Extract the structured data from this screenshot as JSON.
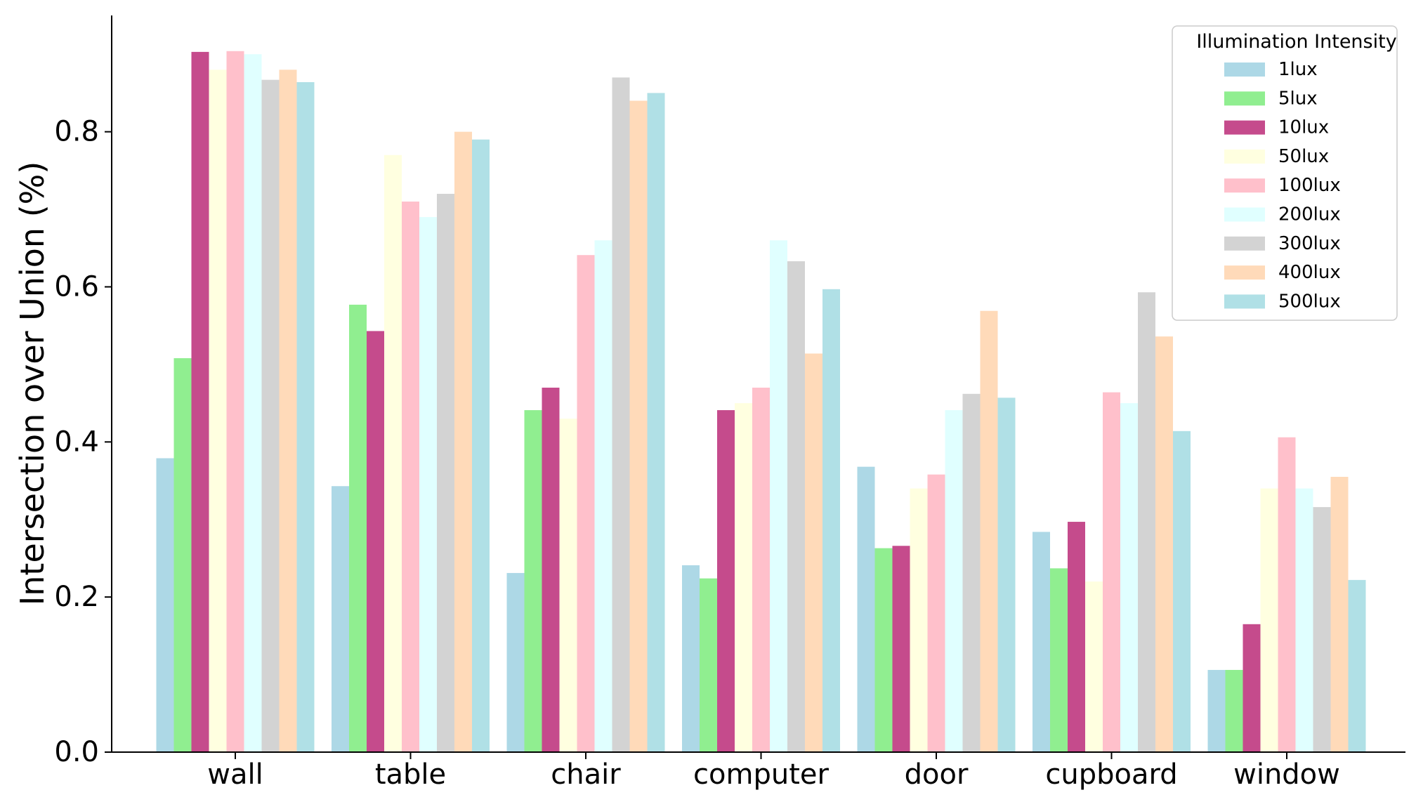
{
  "chart_data": {
    "type": "bar",
    "title": "",
    "xlabel": "",
    "ylabel": "Intersection over Union (%)",
    "ylim": [
      0,
      0.95
    ],
    "yticks": [
      0.0,
      0.2,
      0.4,
      0.6,
      0.8
    ],
    "ytick_labels": [
      "0.0",
      "0.2",
      "0.4",
      "0.6",
      "0.8"
    ],
    "grid": false,
    "legend": {
      "title": "Illumination Intensity",
      "position": "top-right"
    },
    "categories": [
      "wall",
      "table",
      "chair",
      "computer",
      "door",
      "cupboard",
      "window"
    ],
    "series": [
      {
        "name": "1lux",
        "color": "#add8e6",
        "values": [
          0.379,
          0.343,
          0.231,
          0.241,
          0.368,
          0.284,
          0.106
        ]
      },
      {
        "name": "5lux",
        "color": "#90ee90",
        "values": [
          0.508,
          0.577,
          0.441,
          0.224,
          0.263,
          0.237,
          0.106
        ]
      },
      {
        "name": "10lux",
        "color": "#c54b8c",
        "values": [
          0.903,
          0.543,
          0.47,
          0.441,
          0.266,
          0.297,
          0.165
        ]
      },
      {
        "name": "50lux",
        "color": "#ffffe0",
        "values": [
          0.88,
          0.77,
          0.43,
          0.45,
          0.34,
          0.22,
          0.34
        ]
      },
      {
        "name": "100lux",
        "color": "#ffc0cb",
        "values": [
          0.904,
          0.71,
          0.641,
          0.47,
          0.358,
          0.464,
          0.406
        ]
      },
      {
        "name": "200lux",
        "color": "#e0ffff",
        "values": [
          0.9,
          0.69,
          0.66,
          0.66,
          0.441,
          0.45,
          0.34
        ]
      },
      {
        "name": "300lux",
        "color": "#d3d3d3",
        "values": [
          0.867,
          0.72,
          0.87,
          0.633,
          0.462,
          0.593,
          0.316
        ]
      },
      {
        "name": "400lux",
        "color": "#ffdab9",
        "values": [
          0.88,
          0.8,
          0.84,
          0.514,
          0.569,
          0.536,
          0.355
        ]
      },
      {
        "name": "500lux",
        "color": "#b0e0e6",
        "values": [
          0.864,
          0.79,
          0.85,
          0.597,
          0.457,
          0.414,
          0.222
        ]
      }
    ]
  }
}
